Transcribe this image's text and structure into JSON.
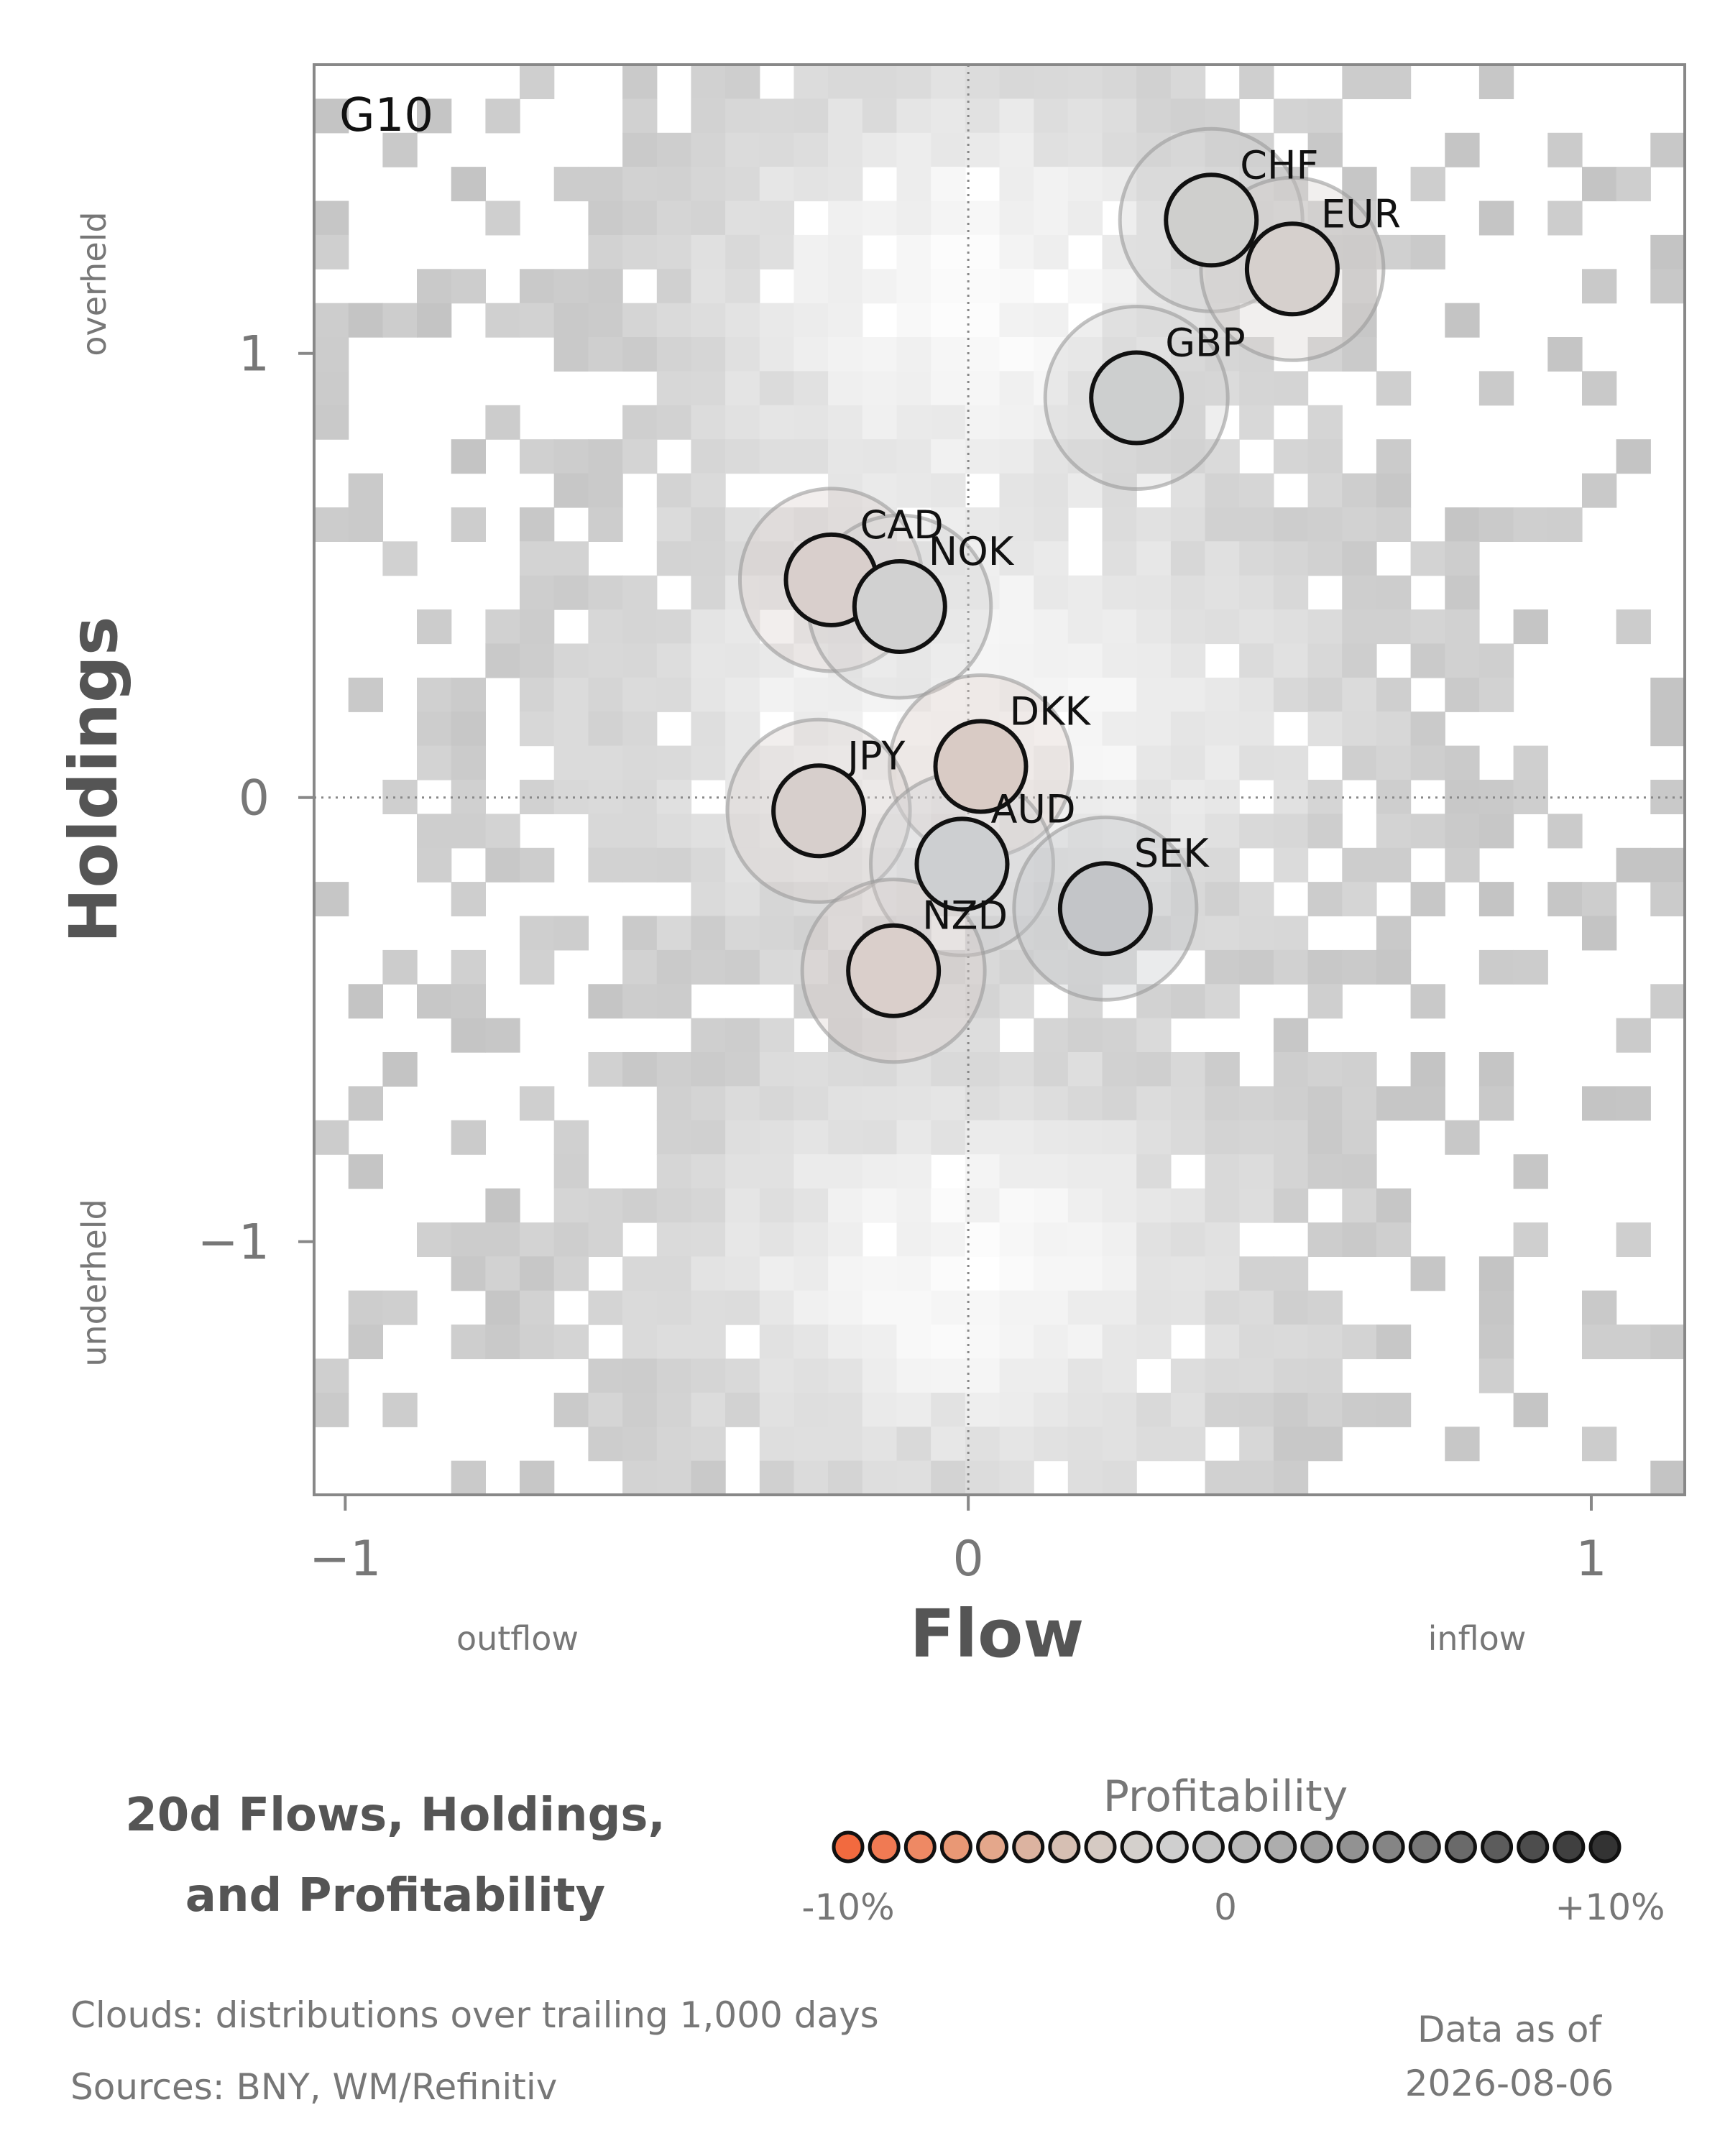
{
  "chart_data": {
    "type": "scatter",
    "panel_label": "G10",
    "xlabel": "Flow",
    "ylabel": "Holdings",
    "xlim": [
      -1.05,
      1.15
    ],
    "ylim": [
      -1.57,
      1.65
    ],
    "x_ticks": [
      {
        "value": -1,
        "label": "−1"
      },
      {
        "value": 0,
        "label": "0"
      },
      {
        "value": 1,
        "label": "1"
      }
    ],
    "y_ticks": [
      {
        "value": -1,
        "label": "−1"
      },
      {
        "value": 0,
        "label": "0"
      },
      {
        "value": 1,
        "label": "1"
      }
    ],
    "x_side_labels": {
      "low": "outflow",
      "high": "inflow"
    },
    "y_side_labels": {
      "low": "underheld",
      "high": "overheld"
    },
    "reference_lines": {
      "x": 0,
      "y": 0,
      "style": "dotted"
    },
    "background": "grey heatmap of trailing distributions",
    "points": [
      {
        "label": "CHF",
        "x": 0.39,
        "y": 1.3,
        "profit": 0.3,
        "color": "#cfcfcd"
      },
      {
        "label": "EUR",
        "x": 0.52,
        "y": 1.19,
        "profit": -1.5,
        "color": "#d6d0cd"
      },
      {
        "label": "GBP",
        "x": 0.27,
        "y": 0.9,
        "profit": 1.0,
        "color": "#cdcfcf"
      },
      {
        "label": "CAD",
        "x": -0.22,
        "y": 0.49,
        "profit": -2.0,
        "color": "#d9cfcc"
      },
      {
        "label": "NOK",
        "x": -0.11,
        "y": 0.43,
        "profit": 0.5,
        "color": "#d1d1d1"
      },
      {
        "label": "DKK",
        "x": 0.02,
        "y": 0.07,
        "profit": -3.0,
        "color": "#d9cbc5"
      },
      {
        "label": "JPY",
        "x": -0.24,
        "y": -0.03,
        "profit": -1.5,
        "color": "#d7cfcc"
      },
      {
        "label": "AUD",
        "x": -0.01,
        "y": -0.15,
        "profit": 1.0,
        "color": "#cdcfd1"
      },
      {
        "label": "SEK",
        "x": 0.22,
        "y": -0.25,
        "profit": 2.5,
        "color": "#c3c5c8"
      },
      {
        "label": "NZD",
        "x": -0.12,
        "y": -0.39,
        "profit": -2.5,
        "color": "#dacfcb"
      }
    ],
    "legend": {
      "title": "20d Flows, Holdings, and Profitability",
      "colorbar_title": "Profitability",
      "colorbar_labels": {
        "low": "-10%",
        "mid": "0",
        "high": "+10%"
      },
      "colorbar_colors": [
        "#f26a3f",
        "#f07a53",
        "#ee8964",
        "#e99875",
        "#e4a78b",
        "#dcb3a0",
        "#d6bfb3",
        "#d5cac3",
        "#d4d0cc",
        "#cfcfcf",
        "#c5c5c5",
        "#bababa",
        "#adadad",
        "#a0a0a0",
        "#929292",
        "#858585",
        "#777777",
        "#6a6a6a",
        "#5c5c5c",
        "#4d4d4d",
        "#404040",
        "#333333"
      ]
    }
  },
  "notes": {
    "clouds": "Clouds:  distributions over trailing 1,000 days",
    "sources": "Sources:  BNY, WM/Refinitiv",
    "as_of_label": "Data as of",
    "as_of_date": "2026-08-06"
  }
}
